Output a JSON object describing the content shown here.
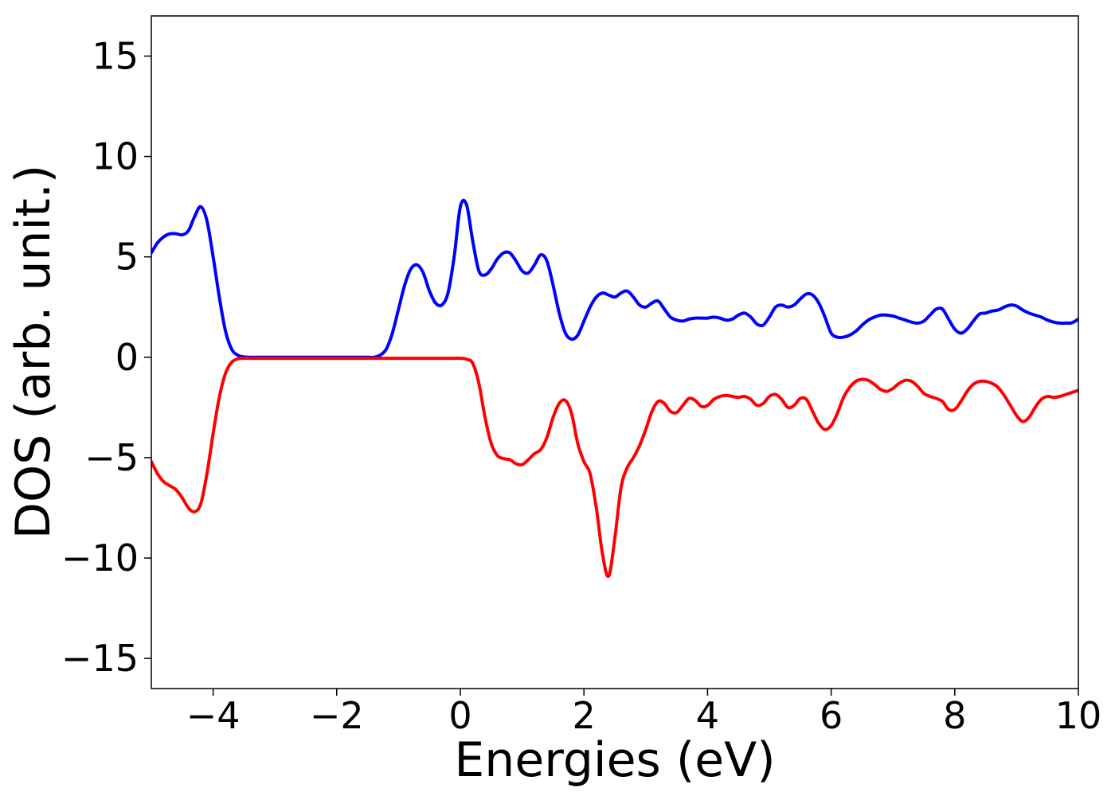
{
  "chart_data": {
    "type": "line",
    "xlabel": "Energies (eV)",
    "ylabel": "DOS (arb. unit.)",
    "x": [
      -5.0,
      -4.9,
      -4.8,
      -4.7,
      -4.6,
      -4.5,
      -4.4,
      -4.3,
      -4.2,
      -4.1,
      -4.0,
      -3.9,
      -3.8,
      -3.7,
      -3.6,
      -3.5,
      -3.4,
      -3.3,
      -3.2,
      -3.1,
      -3.0,
      -2.9,
      -2.8,
      -2.7,
      -2.6,
      -2.5,
      -2.4,
      -2.3,
      -2.2,
      -2.1,
      -2.0,
      -1.9,
      -1.8,
      -1.7,
      -1.6,
      -1.5,
      -1.4,
      -1.3,
      -1.2,
      -1.1,
      -1.0,
      -0.9,
      -0.8,
      -0.7,
      -0.6,
      -0.5,
      -0.4,
      -0.3,
      -0.2,
      -0.1,
      0.0,
      0.1,
      0.2,
      0.3,
      0.4,
      0.5,
      0.6,
      0.7,
      0.8,
      0.9,
      1.0,
      1.1,
      1.2,
      1.3,
      1.4,
      1.5,
      1.6,
      1.7,
      1.8,
      1.9,
      2.0,
      2.1,
      2.2,
      2.3,
      2.4,
      2.5,
      2.6,
      2.7,
      2.8,
      2.9,
      3.0,
      3.1,
      3.2,
      3.3,
      3.4,
      3.5,
      3.6,
      3.7,
      3.8,
      3.9,
      4.0,
      4.1,
      4.2,
      4.3,
      4.4,
      4.5,
      4.6,
      4.7,
      4.8,
      4.9,
      5.0,
      5.1,
      5.2,
      5.3,
      5.4,
      5.5,
      5.6,
      5.7,
      5.8,
      5.9,
      6.0,
      6.1,
      6.2,
      6.3,
      6.4,
      6.5,
      6.6,
      6.7,
      6.8,
      6.9,
      7.0,
      7.1,
      7.2,
      7.3,
      7.4,
      7.5,
      7.6,
      7.7,
      7.8,
      7.9,
      8.0,
      8.1,
      8.2,
      8.3,
      8.4,
      8.5,
      8.6,
      8.7,
      8.8,
      8.9,
      9.0,
      9.1,
      9.2,
      9.3,
      9.4,
      9.5,
      9.6,
      9.7,
      9.8,
      9.9,
      10.0
    ],
    "series": [
      {
        "color": "#0000ff",
        "values": [
          5.2,
          5.7,
          6.0,
          6.15,
          6.15,
          6.1,
          6.3,
          7.0,
          7.5,
          6.8,
          5.0,
          3.0,
          1.3,
          0.4,
          0.1,
          0.02,
          0,
          0,
          0,
          0,
          0,
          0,
          0,
          0,
          0,
          0,
          0,
          0,
          0,
          0,
          0,
          0,
          0,
          0,
          0,
          0,
          0,
          0.1,
          0.4,
          1.2,
          2.4,
          3.6,
          4.4,
          4.6,
          4.2,
          3.3,
          2.7,
          2.6,
          3.2,
          5.0,
          7.5,
          7.6,
          5.8,
          4.3,
          4.1,
          4.4,
          4.9,
          5.2,
          5.2,
          4.8,
          4.3,
          4.2,
          4.6,
          5.1,
          4.8,
          3.6,
          2.2,
          1.2,
          0.9,
          1.1,
          1.8,
          2.5,
          3.0,
          3.2,
          3.1,
          3.0,
          3.2,
          3.3,
          3.0,
          2.6,
          2.5,
          2.7,
          2.8,
          2.4,
          2.0,
          1.85,
          1.8,
          1.9,
          1.95,
          1.95,
          1.95,
          2.0,
          1.95,
          1.85,
          1.9,
          2.1,
          2.2,
          2.0,
          1.65,
          1.6,
          2.0,
          2.5,
          2.6,
          2.5,
          2.6,
          2.9,
          3.15,
          3.1,
          2.7,
          2.0,
          1.2,
          1.0,
          1.0,
          1.1,
          1.3,
          1.6,
          1.85,
          2.0,
          2.1,
          2.1,
          2.05,
          1.95,
          1.85,
          1.75,
          1.7,
          1.8,
          2.1,
          2.4,
          2.4,
          1.9,
          1.4,
          1.2,
          1.4,
          1.8,
          2.15,
          2.2,
          2.3,
          2.35,
          2.5,
          2.6,
          2.55,
          2.35,
          2.2,
          2.1,
          2.0,
          1.85,
          1.75,
          1.7,
          1.7,
          1.72,
          1.9
        ]
      },
      {
        "color": "#ff0000",
        "values": [
          -5.2,
          -5.8,
          -6.2,
          -6.4,
          -6.6,
          -7.0,
          -7.5,
          -7.7,
          -7.3,
          -5.8,
          -3.8,
          -2.0,
          -0.8,
          -0.25,
          -0.08,
          -0.05,
          -0.05,
          -0.05,
          -0.05,
          -0.05,
          -0.05,
          -0.05,
          -0.05,
          -0.05,
          -0.05,
          -0.05,
          -0.05,
          -0.05,
          -0.05,
          -0.05,
          -0.05,
          -0.05,
          -0.05,
          -0.05,
          -0.05,
          -0.05,
          -0.05,
          -0.05,
          -0.05,
          -0.05,
          -0.05,
          -0.05,
          -0.05,
          -0.05,
          -0.05,
          -0.05,
          -0.05,
          -0.05,
          -0.05,
          -0.05,
          -0.05,
          -0.1,
          -0.3,
          -1.3,
          -3.0,
          -4.3,
          -4.9,
          -5.05,
          -5.1,
          -5.3,
          -5.35,
          -5.1,
          -4.8,
          -4.6,
          -4.0,
          -3.0,
          -2.3,
          -2.15,
          -2.8,
          -4.3,
          -5.2,
          -5.8,
          -7.5,
          -9.8,
          -10.9,
          -9.0,
          -6.5,
          -5.5,
          -5.0,
          -4.4,
          -3.6,
          -2.7,
          -2.2,
          -2.3,
          -2.7,
          -2.75,
          -2.4,
          -2.05,
          -2.15,
          -2.45,
          -2.4,
          -2.1,
          -1.95,
          -1.9,
          -1.95,
          -2.0,
          -1.95,
          -2.1,
          -2.4,
          -2.3,
          -1.95,
          -1.85,
          -2.1,
          -2.5,
          -2.4,
          -2.05,
          -2.1,
          -2.7,
          -3.3,
          -3.6,
          -3.4,
          -2.8,
          -2.0,
          -1.5,
          -1.2,
          -1.1,
          -1.15,
          -1.35,
          -1.6,
          -1.7,
          -1.55,
          -1.3,
          -1.15,
          -1.2,
          -1.45,
          -1.8,
          -1.95,
          -2.05,
          -2.2,
          -2.6,
          -2.6,
          -2.2,
          -1.7,
          -1.35,
          -1.2,
          -1.2,
          -1.3,
          -1.5,
          -1.9,
          -2.4,
          -2.9,
          -3.2,
          -3.0,
          -2.5,
          -2.1,
          -1.95,
          -2.0,
          -1.95,
          -1.85,
          -1.75,
          -1.65
        ]
      }
    ],
    "xlim": [
      -5,
      10
    ],
    "xticks": [
      {
        "value": -4,
        "label": "−4"
      },
      {
        "value": -2,
        "label": "−2"
      },
      0,
      2,
      4,
      6,
      8,
      10
    ],
    "ylim": [
      -16.5,
      17
    ],
    "yticks": [
      {
        "value": -15,
        "label": "−15"
      },
      {
        "value": -10,
        "label": "−10"
      },
      {
        "value": -5,
        "label": "−5"
      },
      0,
      5,
      10,
      15
    ],
    "grid": false
  }
}
